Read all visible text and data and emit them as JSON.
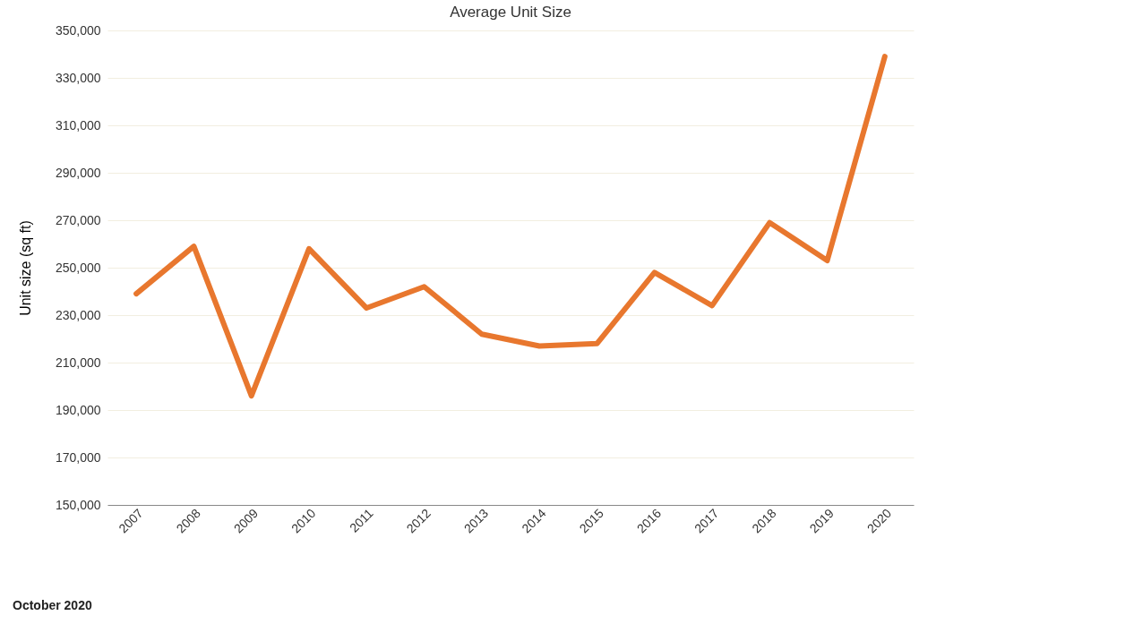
{
  "chart_data": {
    "type": "line",
    "title": "Average Unit Size",
    "ylabel": "Unit size (sq ft)",
    "categories": [
      "2007",
      "2008",
      "2009",
      "2010",
      "2011",
      "2012",
      "2013",
      "2014",
      "2015",
      "2016",
      "2017",
      "2018",
      "2019",
      "2020"
    ],
    "series": [
      {
        "color": "#e8772e",
        "values": [
          239000,
          259000,
          196000,
          258000,
          233000,
          242000,
          222000,
          217000,
          218000,
          248000,
          234000,
          269000,
          253000,
          339000
        ]
      }
    ],
    "ylim": [
      150000,
      350000
    ],
    "yticks": [
      {
        "value": 150000,
        "label": "150,000"
      },
      {
        "value": 170000,
        "label": "170,000"
      },
      {
        "value": 190000,
        "label": "190,000"
      },
      {
        "value": 210000,
        "label": "210,000"
      },
      {
        "value": 230000,
        "label": "230,000"
      },
      {
        "value": 250000,
        "label": "250,000"
      },
      {
        "value": 270000,
        "label": "270,000"
      },
      {
        "value": 290000,
        "label": "290,000"
      },
      {
        "value": 310000,
        "label": "310,000"
      },
      {
        "value": 330000,
        "label": "330,000"
      },
      {
        "value": 350000,
        "label": "350,000"
      }
    ],
    "grid": "y",
    "marker": "none",
    "line_style": "solid",
    "annotations": [
      "October 2020"
    ]
  }
}
